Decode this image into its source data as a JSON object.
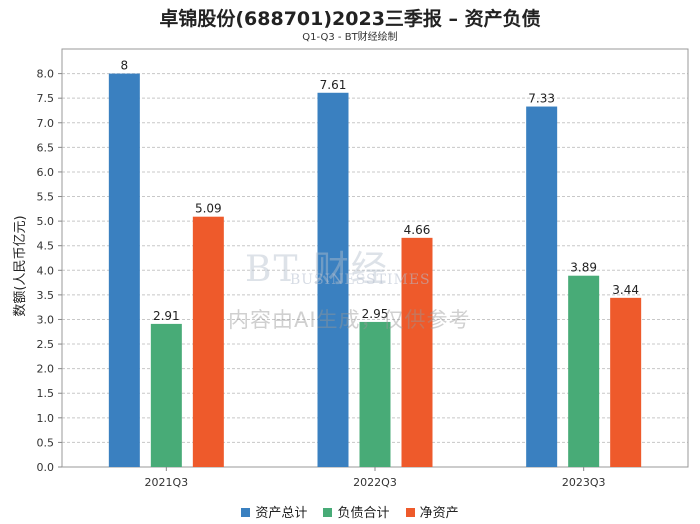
{
  "chart_data": {
    "type": "bar",
    "title": "卓锦股份(688701)2023三季报 – 资产负债",
    "subtitle": "Q1-Q3 - BT财经绘制",
    "ylabel": "数额(人民币亿元)",
    "xlabel": "",
    "categories": [
      "2021Q3",
      "2022Q3",
      "2023Q3"
    ],
    "series": [
      {
        "name": "资产总计",
        "color": "#3a80c0",
        "values": [
          8,
          7.61,
          7.33
        ],
        "labels": [
          "8",
          "7.61",
          "7.33"
        ]
      },
      {
        "name": "负债合计",
        "color": "#48ab77",
        "values": [
          2.91,
          2.95,
          3.89
        ],
        "labels": [
          "2.91",
          "2.95",
          "3.89"
        ]
      },
      {
        "name": "净资产",
        "color": "#ee5a2b",
        "values": [
          5.09,
          4.66,
          3.44
        ],
        "labels": [
          "5.09",
          "4.66",
          "3.44"
        ]
      }
    ],
    "ylim": [
      0,
      8.5
    ],
    "yticks": [
      "0.0",
      "0.5",
      "1.0",
      "1.5",
      "2.0",
      "2.5",
      "3.0",
      "3.5",
      "4.0",
      "4.5",
      "5.0",
      "5.5",
      "6.0",
      "6.5",
      "7.0",
      "7.5",
      "8.0"
    ],
    "grid": true,
    "legend_position": "bottom"
  },
  "watermark": {
    "brand": "BT 财经",
    "brand_en": "BUSINESSTIMES",
    "note": "内容由AI生成，仅供参考"
  }
}
